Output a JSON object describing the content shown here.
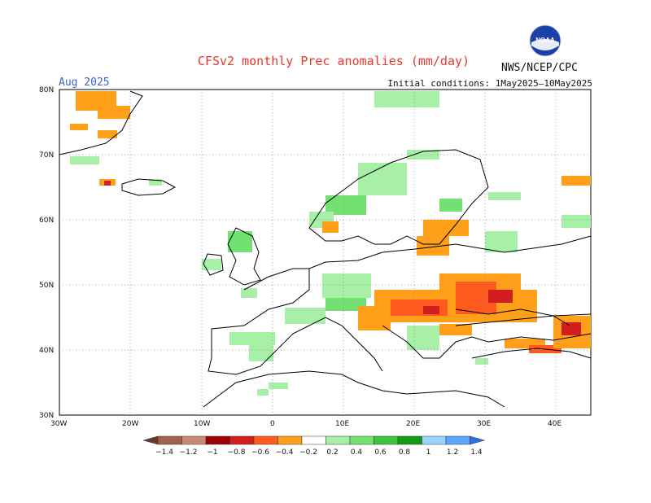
{
  "header": {
    "title": "CFSv2 monthly Prec anomalies (mm/day)",
    "month": "Aug 2025",
    "initial_conditions": "Initial conditions: 1May2025–10May2025",
    "organization": "NWS/NCEP/CPC",
    "logo_text": "NOAA"
  },
  "axes": {
    "lat_ticks": [
      "80N",
      "70N",
      "60N",
      "50N",
      "40N",
      "30N"
    ],
    "lon_ticks": [
      "30W",
      "20W",
      "10W",
      "0",
      "10E",
      "20E",
      "30E",
      "40E"
    ]
  },
  "colorbar": {
    "labels": [
      "−1.4",
      "−1.2",
      "−1",
      "−0.8",
      "−0.6",
      "−0.4",
      "−0.2",
      "0.2",
      "0.4",
      "0.6",
      "0.8",
      "1",
      "1.2",
      "1.4"
    ],
    "colors": [
      "#6b3a2a",
      "#a0634a",
      "#c88a72",
      "#9c0000",
      "#d21e1e",
      "#ff5a1e",
      "#ff9f1a",
      "#ffffff",
      "#a8f0a8",
      "#72e072",
      "#3cc83c",
      "#139b13",
      "#9ad7ff",
      "#5aa8ff",
      "#2d6fe8"
    ]
  },
  "map_regions": {
    "region": "Europe",
    "lat_range": [
      30,
      80
    ],
    "lon_range": [
      -30,
      45
    ]
  }
}
